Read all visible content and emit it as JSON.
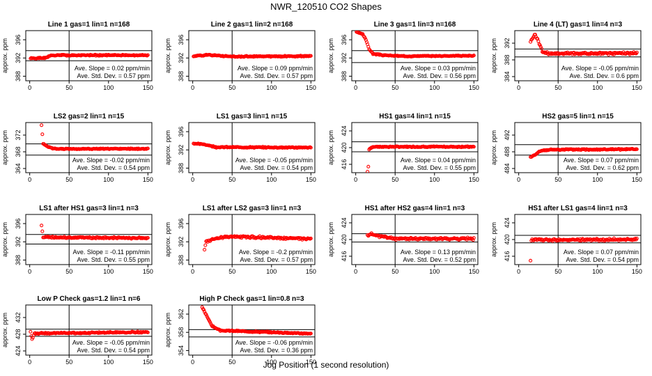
{
  "title": "NWR_120510  CO2 Shapes",
  "xlabel": "Jog Position (1 second resolution)",
  "colors": {
    "points": "#ff0000",
    "axes": "#000000"
  },
  "chart_data": [
    {
      "type": "scatter",
      "title": "Line 1 gas=1 lin=1 n=168",
      "ylabel": "approx. ppm",
      "xlim": [
        -5,
        155
      ],
      "ylim": [
        387,
        398
      ],
      "yticks": [
        388,
        392,
        396
      ],
      "xticks": [
        0,
        50,
        100,
        150
      ],
      "vline": 50,
      "hlines": [
        391.4,
        393.6
      ],
      "slope": "Ave. Slope =  0.02  ppm/min",
      "std": "Ave. Std. Dev. =  0.57  ppm",
      "x_start": 1,
      "segments": [
        [
          1,
          391.9
        ],
        [
          20,
          392.0
        ],
        [
          26,
          392.5
        ],
        [
          40,
          392.6
        ],
        [
          150,
          392.6
        ]
      ],
      "noise": 0.15,
      "seed": 1
    },
    {
      "type": "scatter",
      "title": "Line 2 gas=1 lin=2 n=168",
      "ylabel": "approx. ppm",
      "xlim": [
        -5,
        155
      ],
      "ylim": [
        387,
        398
      ],
      "yticks": [
        388,
        392,
        396
      ],
      "xticks": [
        0,
        50,
        100,
        150
      ],
      "vline": 50,
      "hlines": [],
      "slope": "Ave. Slope =  0.09  ppm/min",
      "std": "Ave. Std. Dev. =  0.57  ppm",
      "x_start": 1,
      "segments": [
        [
          1,
          392.4
        ],
        [
          20,
          392.7
        ],
        [
          50,
          392.3
        ],
        [
          150,
          392.4
        ]
      ],
      "noise": 0.15,
      "seed": 2
    },
    {
      "type": "scatter",
      "title": "Line 3 gas=1 lin=3 n=168",
      "ylabel": "approx. ppm",
      "xlim": [
        -5,
        155
      ],
      "ylim": [
        387,
        398
      ],
      "yticks": [
        388,
        392,
        396
      ],
      "xticks": [
        0,
        50,
        100,
        150
      ],
      "vline": 50,
      "hlines": [
        391.0,
        393.6
      ],
      "slope": "Ave. Slope =  0.03  ppm/min",
      "std": "Ave. Std. Dev. =  0.56  ppm",
      "x_start": 1,
      "segments": [
        [
          1,
          397.7
        ],
        [
          9,
          397.2
        ],
        [
          13,
          396.0
        ],
        [
          17,
          394.0
        ],
        [
          22,
          392.9
        ],
        [
          35,
          392.6
        ],
        [
          60,
          392.4
        ],
        [
          150,
          392.5
        ]
      ],
      "noise": 0.12,
      "seed": 3
    },
    {
      "type": "scatter",
      "title": "Line 4 (LT) gas=1 lin=4 n=3",
      "ylabel": "approx. ppm",
      "xlim": [
        -5,
        155
      ],
      "ylim": [
        383,
        395
      ],
      "yticks": [
        384,
        388,
        392
      ],
      "xticks": [
        0,
        50,
        100,
        150
      ],
      "vline": 50,
      "hlines": [
        388.7,
        390.6
      ],
      "slope": "Ave. Slope =  -0.05  ppm/min",
      "std": "Ave. Std. Dev. =  0.6  ppm",
      "x_start": 15,
      "segments": [
        [
          15,
          392.4
        ],
        [
          18,
          393.4
        ],
        [
          21,
          394.0
        ],
        [
          25,
          392.5
        ],
        [
          30,
          390.0
        ],
        [
          40,
          389.5
        ],
        [
          150,
          389.6
        ]
      ],
      "noise": 0.35,
      "seed": 4
    },
    {
      "type": "scatter",
      "title": "LS2 gas=2 lin=1 n=15",
      "ylabel": "approx. ppm",
      "xlim": [
        -5,
        155
      ],
      "ylim": [
        363,
        375
      ],
      "yticks": [
        364,
        368,
        372
      ],
      "xticks": [
        0,
        50,
        100,
        150
      ],
      "vline": 50,
      "hlines": [
        367.2,
        369.9
      ],
      "slope": "Ave. Slope =  -0.02  ppm/min",
      "std": "Ave. Std. Dev. =  0.54  ppm",
      "x_start": 15,
      "segments": [
        [
          15,
          374.3
        ],
        [
          17,
          370.0
        ],
        [
          22,
          369.3
        ],
        [
          30,
          368.7
        ],
        [
          60,
          368.7
        ],
        [
          150,
          368.7
        ]
      ],
      "noise": 0.15,
      "seed": 5
    },
    {
      "type": "scatter",
      "title": "LS1 gas=3 lin=1 n=15",
      "ylabel": "approx. ppm",
      "xlim": [
        -5,
        155
      ],
      "ylim": [
        387,
        398
      ],
      "yticks": [
        388,
        392,
        396
      ],
      "xticks": [
        0,
        50,
        100,
        150
      ],
      "vline": 50,
      "hlines": [],
      "slope": "Ave. Slope =  -0.05  ppm/min",
      "std": "Ave. Std. Dev. =  0.54  ppm",
      "x_start": 1,
      "segments": [
        [
          1,
          393.4
        ],
        [
          15,
          393.2
        ],
        [
          30,
          392.6
        ],
        [
          150,
          392.5
        ]
      ],
      "noise": 0.15,
      "seed": 6
    },
    {
      "type": "scatter",
      "title": "HS1 gas=4 lin=1 n=15",
      "ylabel": "approx. ppm",
      "xlim": [
        -5,
        155
      ],
      "ylim": [
        414,
        426
      ],
      "yticks": [
        416,
        420,
        424
      ],
      "xticks": [
        0,
        50,
        100,
        150
      ],
      "vline": 50,
      "hlines": [
        419.0,
        421.4
      ],
      "slope": "Ave. Slope =  0.04  ppm/min",
      "std": "Ave. Std. Dev. =  0.55  ppm",
      "x_start": 15,
      "segments": [
        [
          15,
          414.3
        ],
        [
          16,
          415.5
        ],
        [
          17,
          419.6
        ],
        [
          22,
          420.2
        ],
        [
          150,
          420.2
        ]
      ],
      "noise": 0.15,
      "seed": 7
    },
    {
      "type": "scatter",
      "title": "HS2 gas=5 lin=1 n=15",
      "ylabel": "approx. ppm",
      "xlim": [
        -5,
        155
      ],
      "ylim": [
        483,
        495
      ],
      "yticks": [
        484,
        488,
        492
      ],
      "xticks": [
        0,
        50,
        100,
        150
      ],
      "vline": 50,
      "hlines": [
        487.2,
        489.7
      ],
      "slope": "Ave. Slope =  0.07  ppm/min",
      "std": "Ave. Std. Dev. =  0.62  ppm",
      "x_start": 15,
      "segments": [
        [
          15,
          486.7
        ],
        [
          20,
          487.2
        ],
        [
          26,
          488.1
        ],
        [
          40,
          488.5
        ],
        [
          150,
          488.6
        ]
      ],
      "noise": 0.17,
      "seed": 8
    },
    {
      "type": "scatter",
      "title": "LS1 after HS1 gas=3 lin=1 n=3",
      "ylabel": "approx. ppm",
      "xlim": [
        -5,
        155
      ],
      "ylim": [
        387,
        398
      ],
      "yticks": [
        388,
        392,
        396
      ],
      "xticks": [
        0,
        50,
        100,
        150
      ],
      "vline": 50,
      "hlines": [
        391.5,
        393.6
      ],
      "slope": "Ave. Slope =  -0.11  ppm/min",
      "std": "Ave. Std. Dev. =  0.55  ppm",
      "x_start": 15,
      "segments": [
        [
          15,
          395.6
        ],
        [
          17,
          393.0
        ],
        [
          150,
          392.8
        ]
      ],
      "noise": 0.22,
      "seed": 9
    },
    {
      "type": "scatter",
      "title": "LS1 after LS2 gas=3 lin=1 n=3",
      "ylabel": "approx. ppm",
      "xlim": [
        -5,
        155
      ],
      "ylim": [
        387,
        398
      ],
      "yticks": [
        388,
        392,
        396
      ],
      "xticks": [
        0,
        50,
        100,
        150
      ],
      "vline": 50,
      "hlines": [],
      "slope": "Ave. Slope =  -0.2  ppm/min",
      "std": "Ave. Std. Dev. =  0.57  ppm",
      "x_start": 15,
      "segments": [
        [
          15,
          390.4
        ],
        [
          17,
          392.0
        ],
        [
          25,
          392.6
        ],
        [
          50,
          393.2
        ],
        [
          150,
          392.6
        ]
      ],
      "noise": 0.3,
      "seed": 10
    },
    {
      "type": "scatter",
      "title": "HS1 after HS2 gas=4 lin=1 n=3",
      "ylabel": "approx. ppm",
      "xlim": [
        -5,
        155
      ],
      "ylim": [
        414,
        426
      ],
      "yticks": [
        416,
        420,
        424
      ],
      "xticks": [
        0,
        50,
        100,
        150
      ],
      "vline": 50,
      "hlines": [
        419.4,
        421.4
      ],
      "slope": "Ave. Slope =  0.13  ppm/min",
      "std": "Ave. Std. Dev. =  0.52  ppm",
      "x_start": 15,
      "segments": [
        [
          15,
          421.0
        ],
        [
          20,
          421.3
        ],
        [
          30,
          420.8
        ],
        [
          50,
          420.2
        ],
        [
          150,
          420.2
        ]
      ],
      "noise": 0.3,
      "seed": 11
    },
    {
      "type": "scatter",
      "title": "HS1 after LS1 gas=4 lin=1 n=3",
      "ylabel": "approx. ppm",
      "xlim": [
        -5,
        155
      ],
      "ylim": [
        414,
        426
      ],
      "yticks": [
        416,
        420,
        424
      ],
      "xticks": [
        0,
        50,
        100,
        150
      ],
      "vline": 50,
      "hlines": [
        419.2,
        421.0
      ],
      "slope": "Ave. Slope =  0.07  ppm/min",
      "std": "Ave. Std. Dev. =  0.54  ppm",
      "x_start": 15,
      "segments": [
        [
          15,
          415.0
        ],
        [
          16,
          419.9
        ],
        [
          150,
          420.0
        ]
      ],
      "noise": 0.32,
      "seed": 12
    },
    {
      "type": "scatter",
      "title": "Low P Check gas=1.2 lin=1 n=6",
      "ylabel": "approx. ppm",
      "xlim": [
        -5,
        155
      ],
      "ylim": [
        423,
        435
      ],
      "yticks": [
        424,
        428,
        432
      ],
      "xticks": [
        0,
        50,
        100,
        150
      ],
      "vline": 50,
      "hlines": [
        427.5,
        429.2
      ],
      "slope": "Ave. Slope =  -0.05  ppm/min",
      "std": "Ave. Std. Dev. =  0.54  ppm",
      "x_start": 1,
      "segments": [
        [
          1,
          428.5
        ],
        [
          3,
          426.8
        ],
        [
          6,
          428.2
        ],
        [
          150,
          428.5
        ]
      ],
      "noise": 0.2,
      "seed": 13
    },
    {
      "type": "scatter",
      "title": "High P Check gas=1 lin=0.8 n=3",
      "ylabel": "approx. ppm",
      "xlim": [
        -5,
        155
      ],
      "ylim": [
        353,
        364
      ],
      "yticks": [
        354,
        358,
        362
      ],
      "xticks": [
        0,
        50,
        100,
        150
      ],
      "vline": 50,
      "hlines": [
        357.0,
        358.6
      ],
      "slope": "Ave. Slope =  -0.06  ppm/min",
      "std": "Ave. Std. Dev. =  0.36  ppm",
      "x_start": 12,
      "segments": [
        [
          12,
          363.5
        ],
        [
          18,
          361.5
        ],
        [
          25,
          359.3
        ],
        [
          35,
          358.4
        ],
        [
          150,
          357.7
        ]
      ],
      "noise": 0.15,
      "seed": 14
    }
  ]
}
